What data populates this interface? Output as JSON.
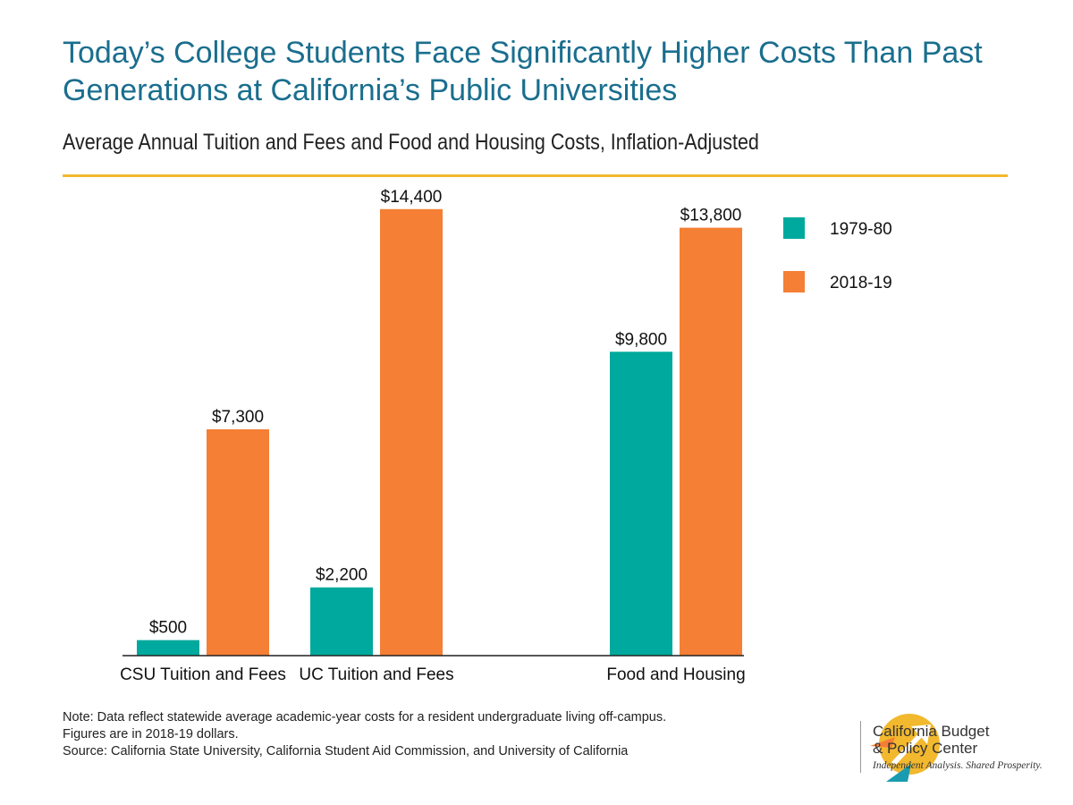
{
  "header": {
    "title": "Today’s College Students Face Significantly Higher Costs Than Past Generations at California’s Public Universities",
    "subtitle": "Average Annual Tuition and Fees and Food and Housing Costs, Inflation-Adjusted"
  },
  "chart_data": {
    "type": "bar",
    "categories": [
      "CSU Tuition and Fees",
      "UC Tuition and Fees",
      "Food and Housing"
    ],
    "series": [
      {
        "name": "1979-80",
        "color": "#00a99d",
        "values": [
          500,
          2200,
          9800
        ],
        "labels": [
          "$500",
          "$2,200",
          "$9,800"
        ]
      },
      {
        "name": "2018-19",
        "color": "#f47f35",
        "values": [
          7300,
          14400,
          13800
        ],
        "labels": [
          "$7,300",
          "$14,400",
          "$13,800"
        ]
      }
    ],
    "ylim": [
      0,
      15000
    ],
    "grid": false,
    "legend": "top-right"
  },
  "footer": {
    "note": "Note: Data reflect statewide average academic-year costs for a resident undergraduate living off-campus. Figures are in 2018-19 dollars.",
    "source": "Source: California State University, California Student Aid Commission, and University of California"
  },
  "logo": {
    "line1": "California Budget",
    "line2": "& Policy Center",
    "tagline": "Independent Analysis. Shared Prosperity."
  }
}
